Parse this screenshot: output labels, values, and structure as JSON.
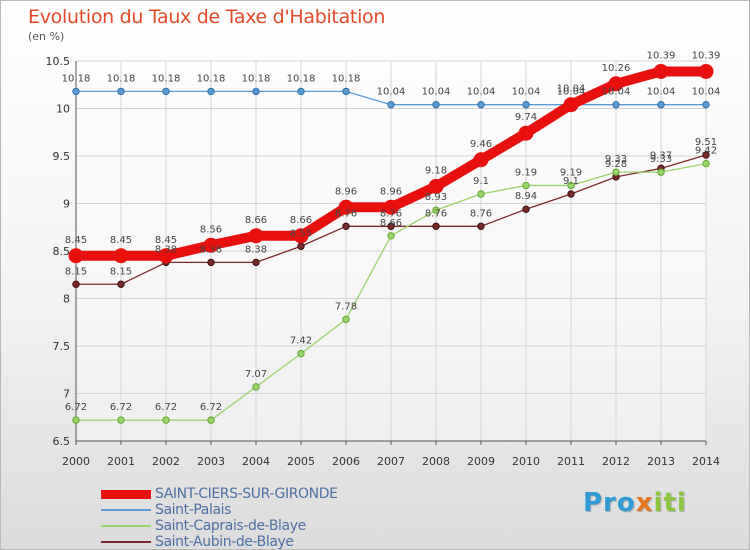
{
  "title": "Evolution du Taux de Taxe d'Habitation",
  "unit_label": "(en %)",
  "logo_text": "Proxiti",
  "chart_data": {
    "type": "line",
    "title": "Evolution du Taux de Taxe d'Habitation",
    "ylabel": "(en %)",
    "xlabel": "",
    "x": [
      "2000",
      "2001",
      "2002",
      "2003",
      "2004",
      "2005",
      "2006",
      "2007",
      "2008",
      "2009",
      "2010",
      "2011",
      "2012",
      "2013",
      "2014"
    ],
    "ylim": [
      6.5,
      10.5
    ],
    "yticks": [
      6.5,
      7,
      7.5,
      8,
      8.5,
      9,
      9.5,
      10,
      10.5
    ],
    "ytick_labels": [
      "6.5",
      "7",
      "7.5",
      "8",
      "8.5",
      "9",
      "9.5",
      "10",
      "10.5"
    ],
    "grid": true,
    "legend_position": "bottom-left",
    "series": [
      {
        "name": "SAINT-CIERS-SUR-GIRONDE",
        "color": "#e8100f",
        "values": [
          8.45,
          8.45,
          8.45,
          8.56,
          8.66,
          8.66,
          8.96,
          8.96,
          9.18,
          9.46,
          9.74,
          10.04,
          10.26,
          10.39,
          10.39
        ],
        "labels": [
          "8.45",
          "8.45",
          "8.45",
          "8.56",
          "8.66",
          "8.66",
          "8.96",
          "8.96",
          "9.18",
          "9.46",
          "9.74",
          "10.04",
          "10.26",
          "10.39",
          "10.39"
        ]
      },
      {
        "name": "Saint-Palais",
        "color": "#5b9bd5",
        "values": [
          10.18,
          10.18,
          10.18,
          10.18,
          10.18,
          10.18,
          10.18,
          10.04,
          10.04,
          10.04,
          10.04,
          10.04,
          10.04,
          10.04,
          10.04
        ],
        "labels": [
          "10.18",
          "10.18",
          "10.18",
          "10.18",
          "10.18",
          "10.18",
          "10.18",
          "10.04",
          "10.04",
          "10.04",
          "10.04",
          "10.04",
          "10.04",
          "10.04",
          "10.04"
        ]
      },
      {
        "name": "Saint-Caprais-de-Blaye",
        "color": "#9ad36a",
        "values": [
          6.72,
          6.72,
          6.72,
          6.72,
          7.07,
          7.42,
          7.78,
          8.66,
          8.93,
          9.1,
          9.19,
          9.19,
          9.33,
          9.33,
          9.42
        ],
        "labels": [
          "6.72",
          "6.72",
          "6.72",
          "6.72",
          "7.07",
          "7.42",
          "7.78",
          "8.66",
          "8.93",
          "9.1",
          "9.19",
          "9.19",
          "9.33",
          "9.33",
          "9.42"
        ]
      },
      {
        "name": "Saint-Aubin-de-Blaye",
        "color": "#7a2a2a",
        "values": [
          8.15,
          8.15,
          8.38,
          8.38,
          8.38,
          8.55,
          8.76,
          8.76,
          8.76,
          8.76,
          8.94,
          9.1,
          9.28,
          9.37,
          9.51
        ],
        "labels": [
          "8.15",
          "8.15",
          "8.38",
          "8.38",
          "8.38",
          "8.55",
          "8.76",
          "8.76",
          "8.76",
          "8.76",
          "8.94",
          "9.1",
          "9.28",
          "9.37",
          "9.51"
        ]
      }
    ]
  }
}
